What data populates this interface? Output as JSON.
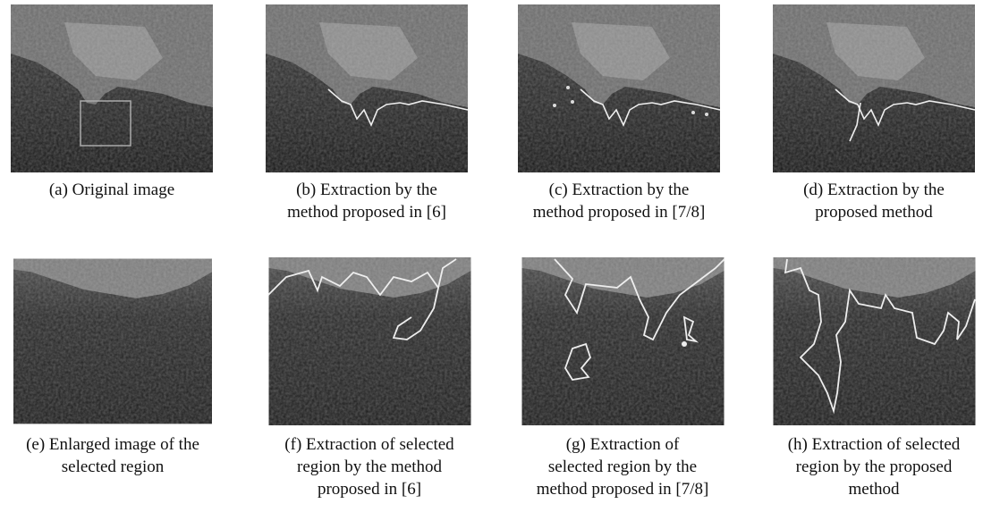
{
  "panels": [
    {
      "caption": [
        "(a) Original image"
      ]
    },
    {
      "caption": [
        "(b) Extraction by the",
        "method proposed in [6]"
      ]
    },
    {
      "caption": [
        "(c) Extraction by the",
        "method proposed in [7/8]"
      ]
    },
    {
      "caption": [
        "(d) Extraction by the",
        "proposed method"
      ]
    },
    {
      "caption": [
        "(e) Enlarged image of the",
        "selected region"
      ]
    },
    {
      "caption": [
        "(f) Extraction of selected",
        "region by the method",
        "proposed in [6]"
      ]
    },
    {
      "caption": [
        "(g) Extraction of",
        "selected region by the",
        "method proposed in [7/8]"
      ]
    },
    {
      "caption": [
        "(h) Extraction of selected",
        "region by the proposed",
        "method"
      ]
    }
  ]
}
